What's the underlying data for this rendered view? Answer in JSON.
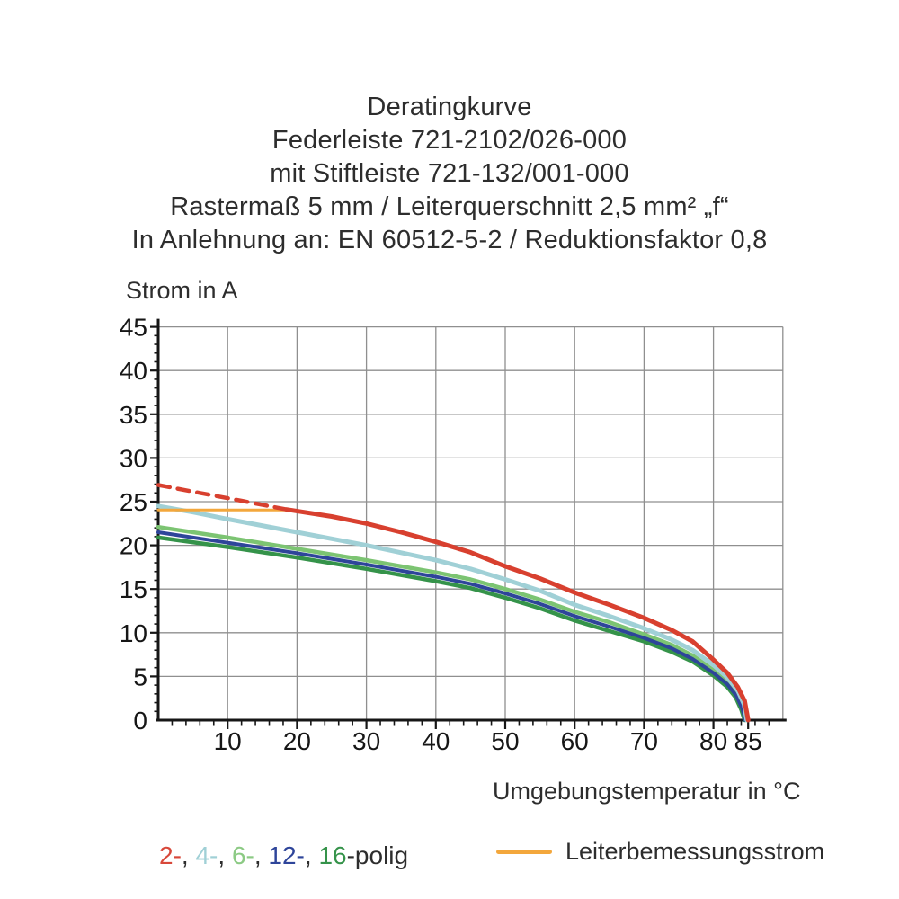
{
  "title": {
    "lines": [
      "Deratingkurve",
      "Federleiste 721-2102/026-000",
      "mit Stiftleiste 721-132/001-000",
      "Rastermaß 5 mm / Leiterquerschnitt 2,5 mm² „f“",
      "In Anlehnung an: EN 60512-5-2 / Reduktionsfaktor 0,8"
    ]
  },
  "chart_data": {
    "type": "line",
    "title": "Deratingkurve Federleiste 721-2102/026-000 mit Stiftleiste 721-132/001-000",
    "xlabel": "Umgebungstemperatur in °C",
    "ylabel": "Strom in A",
    "xlim": [
      0,
      90
    ],
    "ylim": [
      0,
      45
    ],
    "grid": true,
    "x_major_ticks": [
      10,
      20,
      30,
      40,
      50,
      60,
      70,
      80,
      85
    ],
    "y_major_ticks": [
      0,
      5,
      10,
      15,
      20,
      25,
      30,
      35,
      40,
      45
    ],
    "x_minor_step": 2,
    "y_minor_step": 1,
    "x_gridlines": [
      10,
      20,
      30,
      40,
      50,
      60,
      70,
      80,
      90
    ],
    "y_gridlines": [
      5,
      10,
      15,
      20,
      25,
      30,
      35,
      40,
      45
    ],
    "colors": {
      "grid": "#8f8f8f",
      "axis": "#161616",
      "red_2polig": "#d8402f",
      "teal_4polig": "#a0d0d6",
      "green_6polig": "#7cc472",
      "blue_12polig": "#2e459a",
      "green_16polig": "#35934a",
      "orange_rated": "#f3a73c"
    },
    "series": [
      {
        "name": "6-polig",
        "color": "#7cc472",
        "width": 4.5,
        "dash": null,
        "points": [
          [
            0,
            22.1
          ],
          [
            10,
            20.9
          ],
          [
            20,
            19.6
          ],
          [
            30,
            18.3
          ],
          [
            40,
            16.9
          ],
          [
            45,
            16.1
          ],
          [
            50,
            15.0
          ],
          [
            55,
            13.8
          ],
          [
            60,
            12.4
          ],
          [
            65,
            11.2
          ],
          [
            70,
            9.8
          ],
          [
            74,
            8.6
          ],
          [
            77,
            7.4
          ],
          [
            80,
            5.7
          ],
          [
            82,
            4.4
          ],
          [
            83.3,
            3.0
          ],
          [
            84.2,
            1.5
          ],
          [
            84.7,
            0
          ]
        ]
      },
      {
        "name": "16-polig",
        "color": "#35934a",
        "width": 4.5,
        "dash": null,
        "points": [
          [
            0,
            20.9
          ],
          [
            10,
            19.8
          ],
          [
            20,
            18.6
          ],
          [
            30,
            17.3
          ],
          [
            40,
            15.9
          ],
          [
            45,
            15.1
          ],
          [
            50,
            14.0
          ],
          [
            55,
            12.8
          ],
          [
            60,
            11.4
          ],
          [
            65,
            10.2
          ],
          [
            70,
            9.0
          ],
          [
            74,
            7.8
          ],
          [
            77,
            6.7
          ],
          [
            80,
            5.1
          ],
          [
            82,
            3.8
          ],
          [
            83.2,
            2.6
          ],
          [
            84,
            1.2
          ],
          [
            84.5,
            0
          ]
        ]
      },
      {
        "name": "12-polig",
        "color": "#2e459a",
        "width": 4,
        "dash": null,
        "points": [
          [
            0,
            21.5
          ],
          [
            10,
            20.3
          ],
          [
            20,
            19.1
          ],
          [
            30,
            17.8
          ],
          [
            40,
            16.4
          ],
          [
            45,
            15.6
          ],
          [
            50,
            14.5
          ],
          [
            55,
            13.3
          ],
          [
            60,
            11.9
          ],
          [
            65,
            10.7
          ],
          [
            70,
            9.4
          ],
          [
            74,
            8.2
          ],
          [
            77,
            7.0
          ],
          [
            80,
            5.4
          ],
          [
            82,
            4.1
          ],
          [
            83.3,
            2.8
          ],
          [
            84.1,
            1.4
          ],
          [
            84.6,
            0
          ]
        ]
      },
      {
        "name": "4-polig",
        "color": "#a0d0d6",
        "width": 5,
        "dash": null,
        "points": [
          [
            0,
            24.5
          ],
          [
            5,
            23.8
          ],
          [
            10,
            23.0
          ],
          [
            20,
            21.5
          ],
          [
            30,
            20.0
          ],
          [
            40,
            18.3
          ],
          [
            45,
            17.3
          ],
          [
            50,
            16.1
          ],
          [
            55,
            14.8
          ],
          [
            60,
            13.2
          ],
          [
            65,
            11.9
          ],
          [
            70,
            10.5
          ],
          [
            74,
            9.2
          ],
          [
            77,
            8.0
          ],
          [
            80,
            6.3
          ],
          [
            82,
            4.9
          ],
          [
            83.5,
            3.4
          ],
          [
            84.4,
            1.8
          ],
          [
            84.8,
            0
          ]
        ]
      },
      {
        "name": "Leiterbemessungsstrom",
        "color": "#f3a73c",
        "width": 3,
        "dash": null,
        "points": [
          [
            0,
            24.05
          ],
          [
            18.5,
            24.05
          ]
        ]
      },
      {
        "name": "2-polig-Bereich-oberhalb-Bemessungsstrom",
        "color": "#d8402f",
        "width": 4.5,
        "dash": "13 9",
        "points": [
          [
            0,
            26.9
          ],
          [
            6,
            26.0
          ],
          [
            12,
            25.1
          ],
          [
            18.5,
            24.1
          ]
        ]
      },
      {
        "name": "2-polig",
        "color": "#d8402f",
        "width": 5,
        "dash": null,
        "points": [
          [
            18.5,
            24.1
          ],
          [
            25,
            23.3
          ],
          [
            30,
            22.5
          ],
          [
            35,
            21.5
          ],
          [
            40,
            20.4
          ],
          [
            45,
            19.2
          ],
          [
            50,
            17.6
          ],
          [
            55,
            16.2
          ],
          [
            60,
            14.6
          ],
          [
            65,
            13.2
          ],
          [
            70,
            11.7
          ],
          [
            74,
            10.3
          ],
          [
            77,
            9.0
          ],
          [
            80,
            6.9
          ],
          [
            82,
            5.4
          ],
          [
            83.5,
            3.8
          ],
          [
            84.5,
            2.2
          ],
          [
            85,
            0
          ]
        ]
      }
    ]
  },
  "legend": {
    "poles_segments": [
      {
        "text": "2-",
        "color": "#d8483a"
      },
      {
        "text": ", ",
        "color": "#2d2d2d"
      },
      {
        "text": "4-",
        "color": "#a0d0d6"
      },
      {
        "text": ", ",
        "color": "#2d2d2d"
      },
      {
        "text": "6-",
        "color": "#8cca84"
      },
      {
        "text": ", ",
        "color": "#2d2d2d"
      },
      {
        "text": "12-",
        "color": "#2e459a"
      },
      {
        "text": ", ",
        "color": "#2d2d2d"
      },
      {
        "text": "16",
        "color": "#35934a"
      },
      {
        "text": "-polig",
        "color": "#2d2d2d"
      }
    ],
    "rated_current_label": "Leiterbemessungsstrom",
    "rated_current_color": "#f3a73c"
  }
}
